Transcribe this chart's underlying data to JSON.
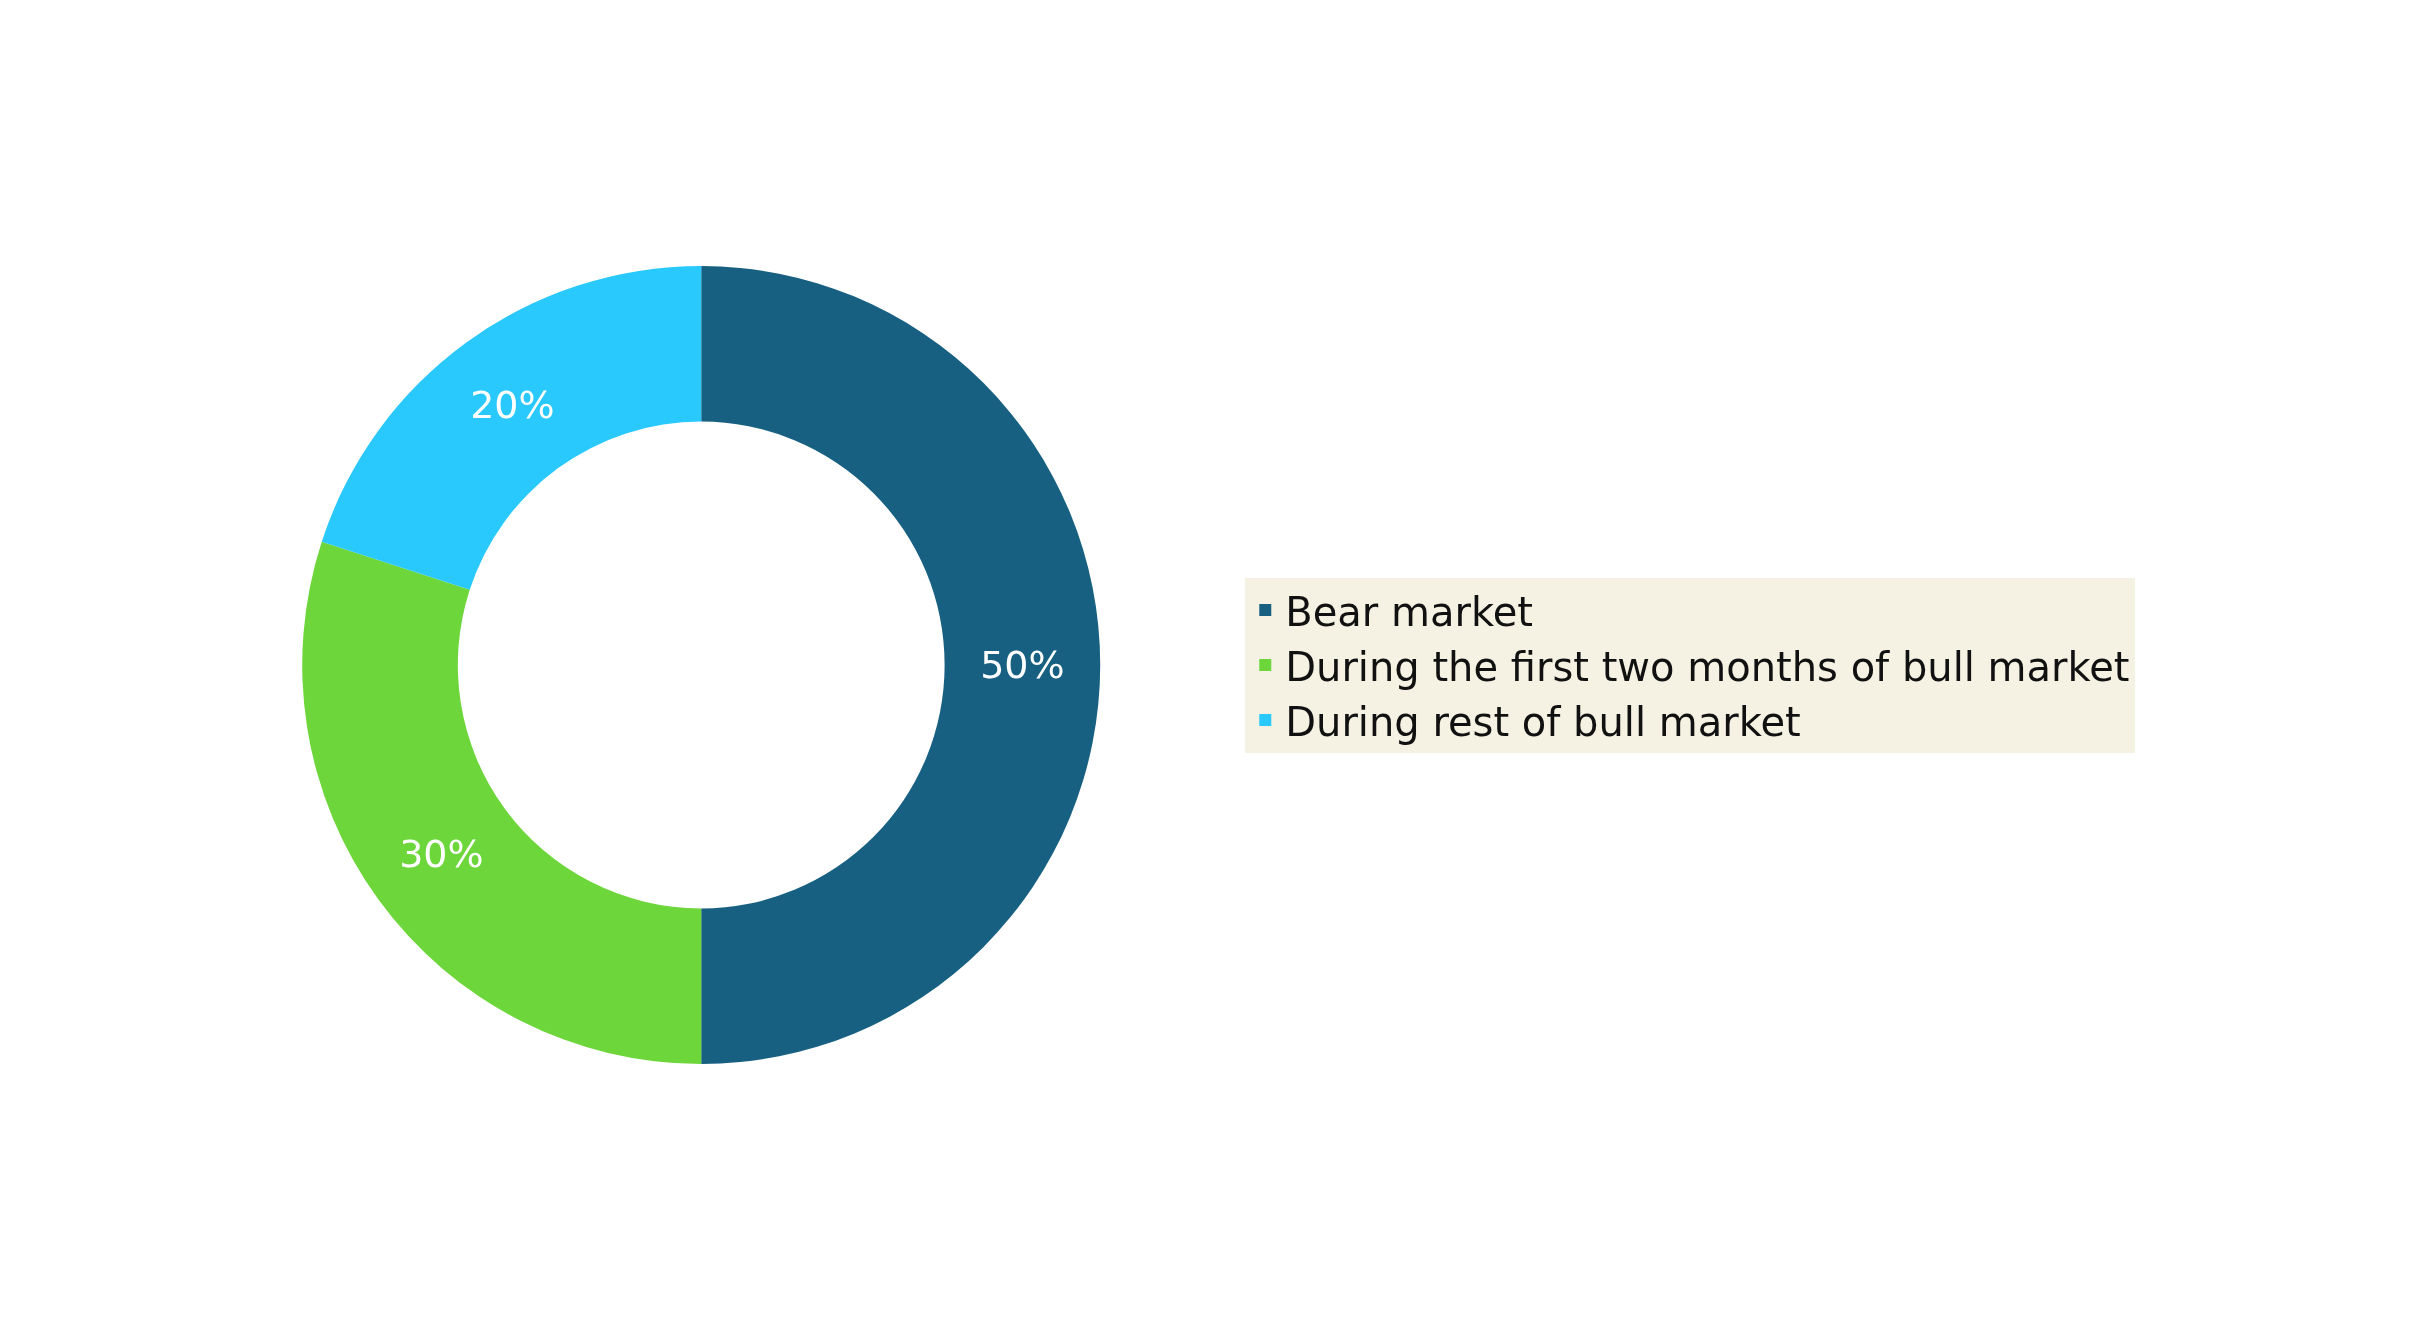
{
  "chart_data": {
    "type": "donut",
    "categories": [
      "Bear market",
      "During the first two months of bull market",
      "During rest of bull market"
    ],
    "values": [
      50,
      30,
      20
    ],
    "colors": [
      "#176082",
      "#6cd63a",
      "#2ac9fd"
    ],
    "value_labels": [
      "50%",
      "30%",
      "20%"
    ],
    "legend": "right"
  }
}
